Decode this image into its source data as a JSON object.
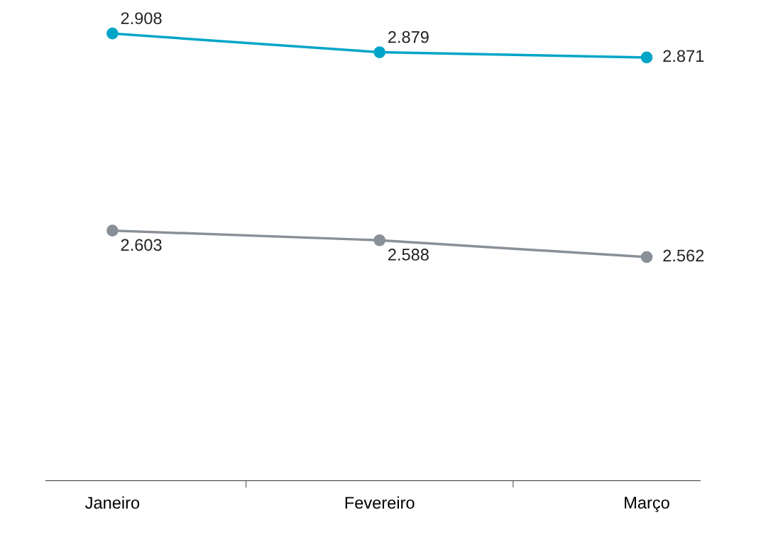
{
  "chart_data": {
    "type": "line",
    "categories": [
      "Janeiro",
      "Fevereiro",
      "Março"
    ],
    "series": [
      {
        "color": "#00a5c8",
        "values": [
          2.908,
          2.879,
          2.871
        ]
      },
      {
        "color": "#8a9098",
        "values": [
          2.603,
          2.588,
          2.562
        ]
      }
    ],
    "data_labels": true,
    "marker": "circle",
    "line_style": "solid",
    "grid": false,
    "legend": false
  }
}
